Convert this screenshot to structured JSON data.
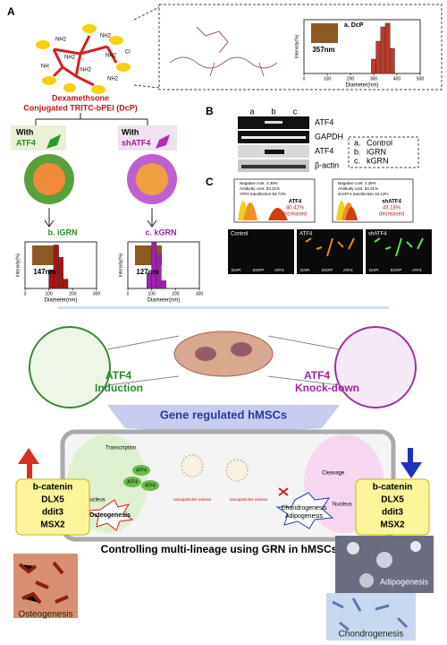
{
  "panel_a": {
    "label": "A",
    "amines": [
      "NH2",
      "NH2",
      "NH2",
      "NH2",
      "NH",
      "NH2",
      "NH2",
      "Cl"
    ],
    "polymer_title": "Dexamethsone",
    "polymer_subtitle": "Conjugated TRITC-bPEI (DcP)",
    "with_1": "With",
    "gene_1": "ATF4",
    "with_2": "With",
    "gene_2": "shATF4",
    "result_1": "b. iGRN",
    "result_2": "c. kGRN",
    "histograms": [
      {
        "title": "a. DcP",
        "size_label": "357nm",
        "x_label": "Diameter(nm)",
        "y_label": "Intensity(%)",
        "color": "#c0392b",
        "xlim": [
          0,
          500
        ],
        "xticks": [
          0,
          100,
          200,
          300,
          400,
          500
        ],
        "ylim": [
          0,
          30
        ],
        "bins": [
          290,
          310,
          330,
          350,
          370,
          390
        ],
        "values": [
          8,
          18,
          26,
          28,
          14
        ]
      },
      {
        "size_label": "147nm",
        "x_label": "Diameter(nm)",
        "y_label": "Intensity(%)",
        "color": "#b01010",
        "xlim": [
          0,
          300
        ],
        "xticks": [
          0,
          100,
          200,
          300
        ],
        "ylim": [
          0,
          30
        ],
        "bins": [
          100,
          120,
          140,
          160,
          180
        ],
        "values": [
          12,
          28,
          20,
          6
        ]
      },
      {
        "size_label": "127nm",
        "x_label": "Diameter(nm)",
        "y_label": "Intensity(%)",
        "color": "#a020b0",
        "xlim": [
          0,
          300
        ],
        "xticks": [
          0,
          100,
          200,
          300
        ],
        "ylim": [
          0,
          30
        ],
        "bins": [
          80,
          100,
          120,
          140,
          160
        ],
        "values": [
          10,
          30,
          22,
          5
        ]
      }
    ]
  },
  "panel_b": {
    "label": "B",
    "lanes": [
      "a",
      "b",
      "c"
    ],
    "rows": [
      "ATF4",
      "GAPDH",
      "ATF4",
      "β-actin"
    ],
    "legend": [
      [
        "a.",
        "Control"
      ],
      [
        "b.",
        "iGRN"
      ],
      [
        "c.",
        "kGRN"
      ]
    ]
  },
  "panel_c": {
    "label": "C",
    "flow": [
      {
        "legend": [
          "Negative cont. 2.39%",
          "Antibody cont. 53.31%",
          "ATF4 transfection 93.73%"
        ],
        "gene": "ATF4",
        "percent": "40.42%",
        "change": "increased"
      },
      {
        "legend": [
          "Negative cont. 2.39%",
          "Antibody cont. 53.31%",
          "shATF4 transfection 10.13%"
        ],
        "gene": "shATF4",
        "percent": "43.18%",
        "change": "decreased"
      }
    ],
    "images": [
      "Control",
      "ATF4",
      "shATF4"
    ],
    "channels": [
      "DAPI",
      "EGFP",
      "ATF4"
    ]
  },
  "scheme": {
    "induction": [
      "ATF4",
      "Induction"
    ],
    "knockdown": [
      "ATF4",
      "Knock-down"
    ],
    "banner": "Gene regulated hMSCs",
    "transcription": "Transcription",
    "nucleus_left": "Nucleus",
    "atf4_nodes": [
      "ATF4",
      "ATF4",
      "ATF4"
    ],
    "release_left": "nanoparticles release",
    "release_right": "nanoparticles release",
    "cleavage": "Cleavage",
    "nucleus_right": "Nucleus",
    "osteogenesis": "Osteogenesis",
    "chondro": "Chondrogenesis",
    "adipo": "Adipogenesis",
    "genes_left": [
      "b-catenin",
      "DLX5",
      "ddit3",
      "MSX2"
    ],
    "genes_right": [
      "b-catenin",
      "DLX5",
      "ddit3",
      "MSX2"
    ],
    "footer": "Controlling multi-lineage using GRN in hMSCs",
    "photo_left": "Osteogenesis",
    "photo_right_top": "Adipogenesis",
    "photo_right_bottom": "Chondrogenesis"
  }
}
